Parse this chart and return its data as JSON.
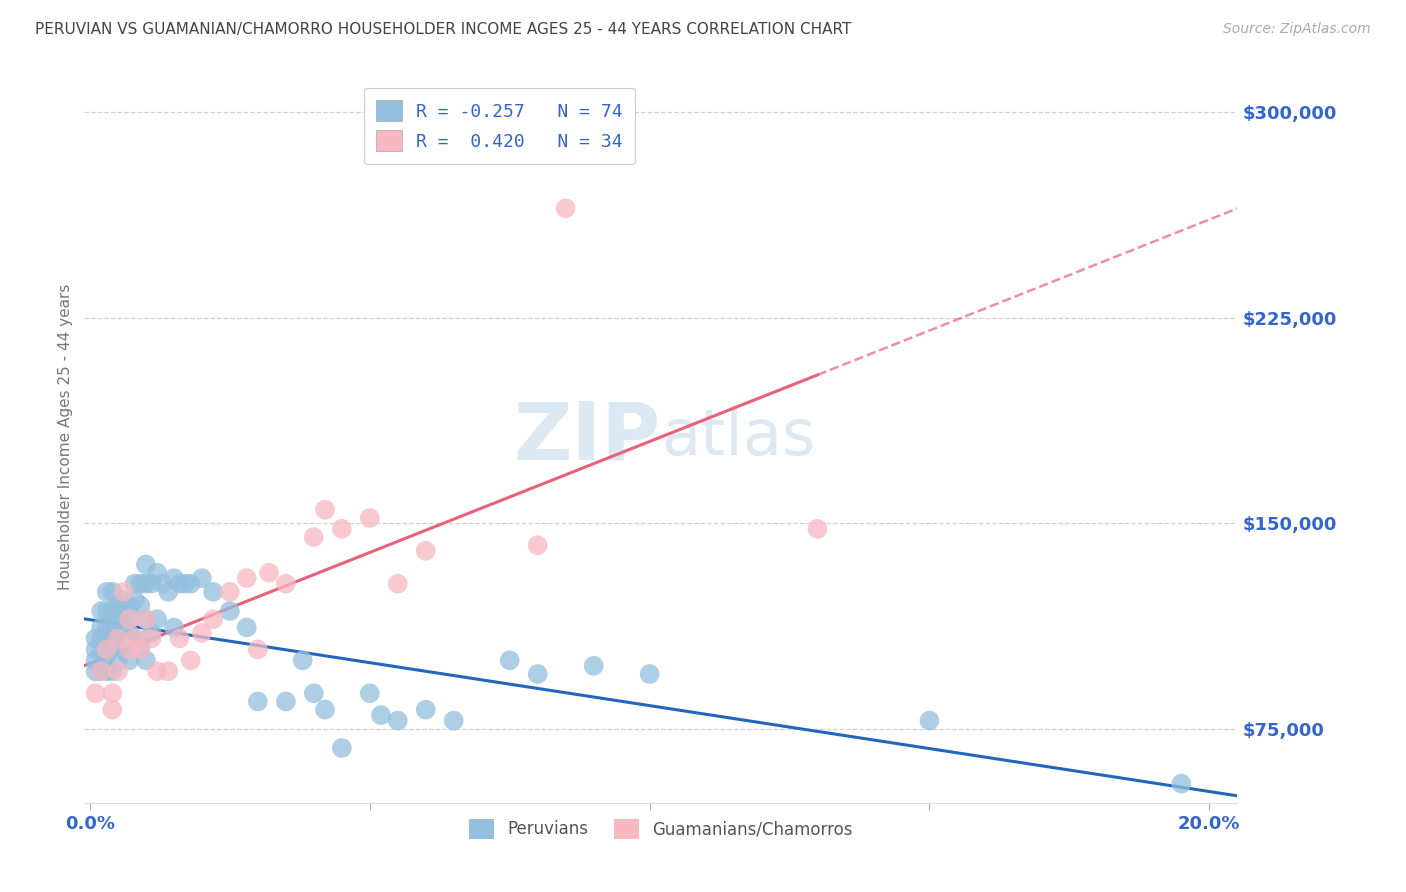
{
  "title": "PERUVIAN VS GUAMANIAN/CHAMORRO HOUSEHOLDER INCOME AGES 25 - 44 YEARS CORRELATION CHART",
  "source": "Source: ZipAtlas.com",
  "ylabel_ticks": [
    75000,
    150000,
    225000,
    300000
  ],
  "ylabel_labels": [
    "$75,000",
    "$150,000",
    "$225,000",
    "$300,000"
  ],
  "ylabel_label": "Householder Income Ages 25 - 44 years",
  "xlim": [
    -0.001,
    0.205
  ],
  "ylim": [
    48000,
    315000
  ],
  "peruvian_color": "#93bedd",
  "guamanian_color": "#f7b8c2",
  "peruvian_line_color": "#2266bb",
  "guamanian_line_color": "#e8607a",
  "background_color": "#ffffff",
  "grid_color": "#cccccc",
  "tick_color": "#3366cc",
  "title_color": "#444444",
  "watermark_color": "#dce8f2",
  "peruvians_x": [
    0.001,
    0.001,
    0.001,
    0.001,
    0.002,
    0.002,
    0.002,
    0.002,
    0.002,
    0.003,
    0.003,
    0.003,
    0.003,
    0.003,
    0.003,
    0.004,
    0.004,
    0.004,
    0.004,
    0.004,
    0.005,
    0.005,
    0.005,
    0.005,
    0.006,
    0.006,
    0.006,
    0.006,
    0.007,
    0.007,
    0.007,
    0.007,
    0.008,
    0.008,
    0.008,
    0.009,
    0.009,
    0.009,
    0.01,
    0.01,
    0.01,
    0.01,
    0.011,
    0.011,
    0.012,
    0.012,
    0.013,
    0.014,
    0.015,
    0.015,
    0.016,
    0.017,
    0.018,
    0.02,
    0.022,
    0.025,
    0.028,
    0.03,
    0.035,
    0.038,
    0.04,
    0.042,
    0.045,
    0.05,
    0.052,
    0.055,
    0.06,
    0.065,
    0.075,
    0.08,
    0.09,
    0.1,
    0.15,
    0.195
  ],
  "peruvians_y": [
    108000,
    104000,
    100000,
    96000,
    118000,
    112000,
    108000,
    103000,
    96000,
    125000,
    118000,
    112000,
    108000,
    102000,
    96000,
    125000,
    118000,
    112000,
    105000,
    96000,
    120000,
    115000,
    108000,
    100000,
    122000,
    116000,
    110000,
    104000,
    120000,
    115000,
    110000,
    100000,
    128000,
    122000,
    108000,
    128000,
    120000,
    105000,
    135000,
    128000,
    115000,
    100000,
    128000,
    110000,
    132000,
    115000,
    128000,
    125000,
    130000,
    112000,
    128000,
    128000,
    128000,
    130000,
    125000,
    118000,
    112000,
    85000,
    85000,
    100000,
    88000,
    82000,
    68000,
    88000,
    80000,
    78000,
    82000,
    78000,
    100000,
    95000,
    98000,
    95000,
    78000,
    55000
  ],
  "guamanians_x": [
    0.001,
    0.002,
    0.003,
    0.004,
    0.004,
    0.005,
    0.005,
    0.006,
    0.007,
    0.007,
    0.008,
    0.009,
    0.01,
    0.011,
    0.012,
    0.014,
    0.016,
    0.018,
    0.02,
    0.022,
    0.025,
    0.028,
    0.03,
    0.032,
    0.035,
    0.04,
    0.042,
    0.045,
    0.05,
    0.055,
    0.06,
    0.08,
    0.085,
    0.13
  ],
  "guamanians_y": [
    88000,
    96000,
    104000,
    88000,
    82000,
    108000,
    96000,
    125000,
    115000,
    104000,
    108000,
    104000,
    115000,
    108000,
    96000,
    96000,
    108000,
    100000,
    110000,
    115000,
    125000,
    130000,
    104000,
    132000,
    128000,
    145000,
    155000,
    148000,
    152000,
    128000,
    140000,
    142000,
    265000,
    148000
  ]
}
